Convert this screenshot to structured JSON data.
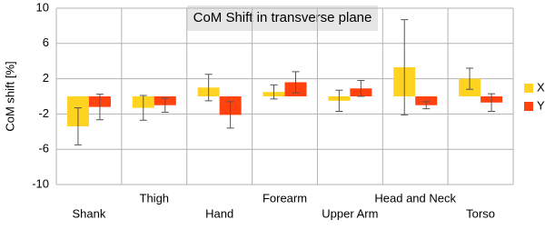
{
  "chart_data": {
    "type": "bar",
    "title": "CoM Shift in transverse plane",
    "y_label": "CoM shift [%]",
    "categories": [
      "Shank",
      "Thigh",
      "Hand",
      "Forearm",
      "Upper Arm",
      "Head and Neck",
      "Torso"
    ],
    "series": [
      {
        "name": "X",
        "color": "#ffd320",
        "values": [
          -3.4,
          -1.3,
          1.0,
          0.5,
          -0.5,
          3.3,
          2.0
        ],
        "errors": [
          2.1,
          1.4,
          1.5,
          0.8,
          1.2,
          5.4,
          1.2
        ]
      },
      {
        "name": "Y",
        "color": "#ff420e",
        "values": [
          -1.2,
          -1.0,
          -2.1,
          1.6,
          0.9,
          -1.0,
          -0.7
        ],
        "errors": [
          1.45,
          0.8,
          1.5,
          1.2,
          0.9,
          0.4,
          1.0
        ]
      }
    ],
    "ylim": [
      -10,
      10
    ],
    "yticks": [
      -10,
      -6,
      -2,
      2,
      6,
      10
    ],
    "grid": true,
    "legend": "right"
  }
}
